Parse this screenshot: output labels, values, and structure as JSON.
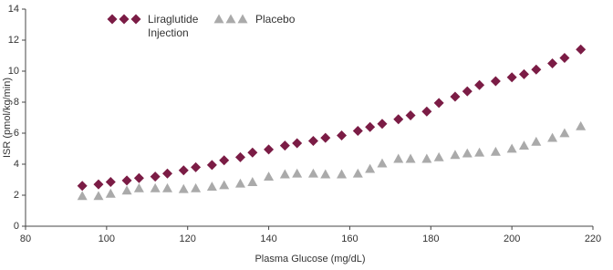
{
  "chart_data": {
    "type": "scatter",
    "xlabel": "Plasma Glucose (mg/dL)",
    "ylabel": "ISR (pmol/kg/min)",
    "xlim": [
      80,
      220
    ],
    "xticks": [
      80,
      100,
      120,
      140,
      160,
      180,
      200,
      220
    ],
    "ylim": [
      0,
      14
    ],
    "yticks": [
      0,
      2,
      4,
      6,
      8,
      10,
      12,
      14
    ],
    "series": [
      {
        "name": "Liraglutide Injection",
        "color": "#7b1c45",
        "marker": "diamond",
        "x": [
          94,
          98,
          101,
          105,
          108,
          112,
          115,
          119,
          122,
          126,
          129,
          133,
          136,
          140,
          144,
          147,
          151,
          154,
          158,
          162,
          165,
          168,
          172,
          175,
          179,
          182,
          186,
          189,
          192,
          196,
          200,
          203,
          206,
          210,
          213,
          217
        ],
        "values": [
          2.6,
          2.7,
          2.85,
          2.95,
          3.1,
          3.2,
          3.4,
          3.6,
          3.8,
          3.95,
          4.25,
          4.45,
          4.75,
          4.95,
          5.2,
          5.35,
          5.5,
          5.7,
          5.85,
          6.15,
          6.4,
          6.6,
          6.9,
          7.15,
          7.4,
          7.95,
          8.35,
          8.7,
          9.1,
          9.35,
          9.6,
          9.8,
          10.1,
          10.5,
          10.85,
          11.4
        ]
      },
      {
        "name": "Placebo",
        "color": "#aaaaaa",
        "marker": "triangle",
        "x": [
          94,
          98,
          101,
          105,
          108,
          112,
          115,
          119,
          122,
          126,
          129,
          133,
          136,
          140,
          144,
          147,
          151,
          154,
          158,
          162,
          165,
          168,
          172,
          175,
          179,
          182,
          186,
          189,
          192,
          196,
          200,
          203,
          206,
          210,
          213,
          217
        ],
        "values": [
          1.95,
          1.95,
          2.1,
          2.3,
          2.45,
          2.45,
          2.45,
          2.4,
          2.45,
          2.55,
          2.65,
          2.75,
          2.85,
          3.2,
          3.35,
          3.4,
          3.4,
          3.35,
          3.35,
          3.4,
          3.7,
          4.05,
          4.35,
          4.35,
          4.35,
          4.45,
          4.6,
          4.7,
          4.75,
          4.8,
          5.0,
          5.2,
          5.45,
          5.7,
          6.0,
          6.45
        ]
      }
    ]
  }
}
